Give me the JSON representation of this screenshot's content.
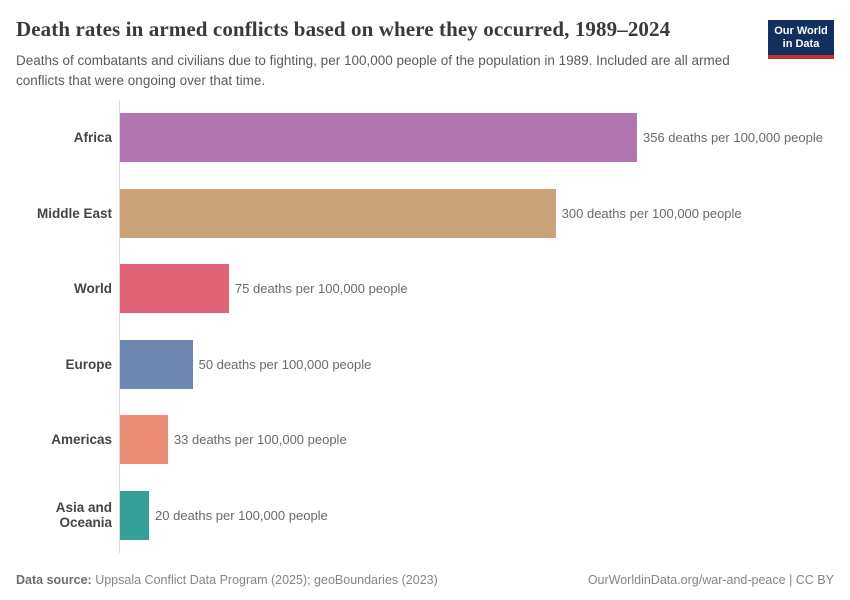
{
  "header": {
    "title": "Death rates in armed conflicts based on where they occurred, 1989–2024",
    "subtitle": "Deaths of combatants and civilians due to fighting, per 100,000 people of the population in 1989. Included are all armed conflicts that were ongoing over that time.",
    "logo": {
      "line1": "Our World",
      "line2": "in Data",
      "bg_color": "#12305e",
      "accent_color": "#c9302c"
    }
  },
  "chart_data": {
    "type": "bar",
    "orientation": "horizontal",
    "title": "Death rates in armed conflicts based on where they occurred, 1989–2024",
    "unit": "deaths per 100,000 people",
    "xlim": [
      0,
      356
    ],
    "grid": false,
    "legend": false,
    "categories": [
      "Africa",
      "Middle East",
      "World",
      "Europe",
      "Americas",
      "Asia and Oceania"
    ],
    "values": [
      356,
      300,
      75,
      50,
      33,
      20
    ],
    "value_labels": [
      "356 deaths per 100,000 people",
      "300 deaths per 100,000 people",
      "75 deaths per 100,000 people",
      "50 deaths per 100,000 people",
      "33 deaths per 100,000 people",
      "20 deaths per 100,000 people"
    ],
    "bar_colors": [
      "#b175b1",
      "#c9a27a",
      "#e06276",
      "#6d87b0",
      "#ea8c74",
      "#35a096"
    ]
  },
  "footer": {
    "source_label": "Data source:",
    "source_text": " Uppsala Conflict Data Program (2025); geoBoundaries (2023)",
    "right_text": "OurWorldinData.org/war-and-peace | CC BY"
  }
}
